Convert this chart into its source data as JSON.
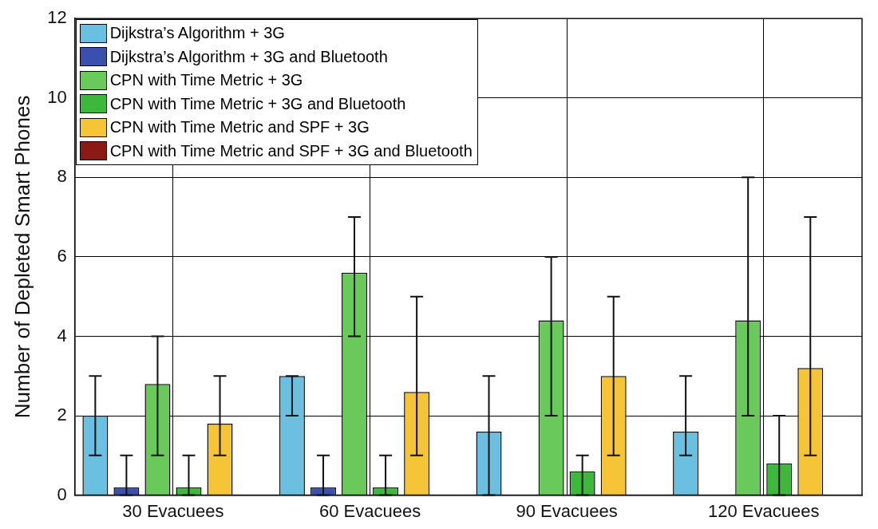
{
  "chart_data": {
    "type": "bar",
    "ylabel": "Number of Depleted Smart Phones",
    "categories": [
      "30 Evacuees",
      "60 Evacuees",
      "90 Evacuees",
      "120 Evacuees"
    ],
    "series": [
      {
        "name": "Dijkstra’s Algorithm + 3G",
        "color": "#6bbfe0",
        "values": [
          2,
          3,
          1.6,
          1.6
        ],
        "errors": [
          [
            1,
            3
          ],
          [
            2,
            3
          ],
          [
            0,
            3
          ],
          [
            1,
            3
          ]
        ]
      },
      {
        "name": "Dijkstra’s Algorithm + 3G and Bluetooth",
        "color": "#3a4fae",
        "values": [
          0.2,
          0.2,
          0,
          0
        ],
        "errors": [
          [
            0,
            1
          ],
          [
            0,
            1
          ],
          null,
          null
        ]
      },
      {
        "name": "CPN with Time Metric + 3G",
        "color": "#69c95a",
        "values": [
          2.8,
          5.6,
          4.4,
          4.4
        ],
        "errors": [
          [
            1,
            4
          ],
          [
            4,
            7
          ],
          [
            2,
            6
          ],
          [
            2,
            8
          ]
        ]
      },
      {
        "name": "CPN with Time Metric + 3G and Bluetooth",
        "color": "#3db83d",
        "values": [
          0.2,
          0.2,
          0.6,
          0.8
        ],
        "errors": [
          [
            0,
            1
          ],
          [
            0,
            1
          ],
          [
            0,
            1
          ],
          [
            0,
            2
          ]
        ]
      },
      {
        "name": "CPN with Time Metric and SPF + 3G",
        "color": "#f6c537",
        "values": [
          1.8,
          2.6,
          3,
          3.2
        ],
        "errors": [
          [
            1,
            3
          ],
          [
            1,
            5
          ],
          [
            1,
            5
          ],
          [
            1,
            7
          ]
        ]
      },
      {
        "name": "CPN with Time Metric and SPF + 3G and Bluetooth",
        "color": "#8b1a14",
        "values": [
          0,
          0,
          0,
          0
        ]
      }
    ],
    "ylim": [
      0,
      12
    ],
    "yticks": [
      0,
      2,
      4,
      6,
      8,
      10,
      12
    ],
    "grid": true,
    "legend": "top left"
  }
}
